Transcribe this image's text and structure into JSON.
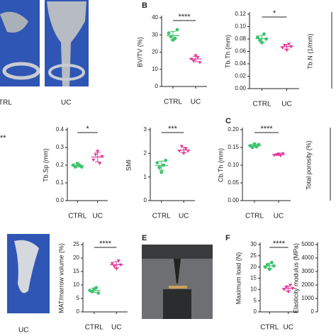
{
  "figure": {
    "panel_labels": [
      "B",
      "C",
      "E",
      "F"
    ],
    "image_labels": [
      "TRL",
      "UC",
      "UC"
    ],
    "annotations": [
      "**"
    ]
  },
  "chart_data": [
    {
      "type": "strip",
      "ylabel": "BV/TV (%)",
      "categories": [
        "CTRL",
        "UC"
      ],
      "series": [
        {
          "color": "#3cc36b",
          "values": [
            31,
            29,
            27,
            28,
            33
          ]
        },
        {
          "color": "#e2399b",
          "values": [
            16,
            15,
            18,
            17,
            14
          ]
        }
      ],
      "ylim": [
        0,
        40
      ],
      "yticks": [
        0,
        10,
        20,
        30,
        40
      ],
      "significance": "****"
    },
    {
      "type": "strip",
      "ylabel": "Tb.Th (mm)",
      "categories": [
        "CTRL",
        "UC"
      ],
      "series": [
        {
          "color": "#3cc36b",
          "values": [
            0.083,
            0.078,
            0.074,
            0.088,
            0.08
          ]
        },
        {
          "color": "#e2399b",
          "values": [
            0.066,
            0.07,
            0.062,
            0.072,
            0.068
          ]
        }
      ],
      "ylim": [
        0,
        0.12
      ],
      "yticks": [
        {
          "value": 0,
          "label": "0.00"
        },
        {
          "value": 0.02,
          "label": "0.02"
        },
        {
          "value": 0.04,
          "label": "0.04"
        },
        {
          "value": 0.06,
          "label": "0.06"
        },
        {
          "value": 0.08,
          "label": "0.08"
        },
        {
          "value": 0.1,
          "label": "0.10"
        },
        {
          "value": 0.12,
          "label": "0.12"
        }
      ],
      "significance": "*"
    },
    {
      "type": "axis",
      "ylabel": "Tb.N (1/mm)"
    },
    {
      "type": "strip",
      "ylabel": "Tb.Sp (mm)",
      "categories": [
        "CTRL",
        "UC"
      ],
      "series": [
        {
          "color": "#3cc36b",
          "values": [
            0.2,
            0.19,
            0.21,
            0.2,
            0.19
          ]
        },
        {
          "color": "#e2399b",
          "values": [
            0.23,
            0.26,
            0.28,
            0.21,
            0.25
          ]
        }
      ],
      "ylim": [
        0,
        0.4
      ],
      "yticks": [
        {
          "value": 0,
          "label": "0.0"
        },
        0.1,
        0.2,
        0.3,
        0.4
      ],
      "significance": "*"
    },
    {
      "type": "strip",
      "ylabel": "SMI",
      "categories": [
        "CTRL",
        "UC"
      ],
      "series": [
        {
          "color": "#3cc36b",
          "values": [
            1.6,
            1.4,
            1.2,
            1.5,
            1.7
          ]
        },
        {
          "color": "#e2399b",
          "values": [
            2.1,
            2.3,
            2.0,
            2.2,
            2.1
          ]
        }
      ],
      "ylim": [
        0,
        3
      ],
      "yticks": [
        0,
        1,
        2,
        3
      ],
      "significance": "***"
    },
    {
      "type": "strip",
      "ylabel": "Cb.Th (mm)",
      "categories": [
        "CTRL",
        "UC"
      ],
      "series": [
        {
          "color": "#3cc36b",
          "values": [
            0.155,
            0.15,
            0.16,
            0.152,
            0.158
          ]
        },
        {
          "color": "#e2399b",
          "values": [
            0.128,
            0.13,
            0.132,
            0.127,
            0.133
          ]
        }
      ],
      "ylim": [
        0,
        0.2
      ],
      "yticks": [
        {
          "value": 0,
          "label": "0.00"
        },
        {
          "value": 0.05,
          "label": "0.05"
        },
        {
          "value": 0.1,
          "label": "0.10"
        },
        {
          "value": 0.15,
          "label": "0.15"
        },
        {
          "value": 0.2,
          "label": "0.20"
        }
      ],
      "significance": "****"
    },
    {
      "type": "axis",
      "ylabel": "Total porosity (%)"
    },
    {
      "type": "strip",
      "ylabel": "MAT/marrow volume (%)",
      "categories": [
        "CTRL",
        "UC"
      ],
      "series": [
        {
          "color": "#3cc36b",
          "values": [
            8,
            7.5,
            8.5,
            9,
            7
          ]
        },
        {
          "color": "#e2399b",
          "values": [
            18,
            17,
            16,
            19,
            17.5
          ]
        }
      ],
      "ylim": [
        0,
        25
      ],
      "yticks": [
        0,
        5,
        10,
        15,
        20,
        25
      ],
      "significance": "****"
    },
    {
      "type": "strip",
      "ylabel": "Maximum load (N)",
      "categories": [
        "CTRL",
        "UC"
      ],
      "series": [
        {
          "color": "#3cc36b",
          "values": [
            20,
            21,
            19,
            22,
            20.5
          ]
        },
        {
          "color": "#e2399b",
          "values": [
            10,
            11,
            9,
            12,
            10.5
          ]
        }
      ],
      "ylim": [
        0,
        30
      ],
      "yticks": [
        0,
        5,
        10,
        15,
        20,
        25,
        30
      ],
      "significance": "****"
    },
    {
      "type": "axis",
      "ylabel": "Elasticity modulus (MPa)",
      "ylim": [
        0,
        5000
      ],
      "yticks": [
        0,
        1000,
        2000,
        3000,
        4000,
        5000
      ]
    }
  ]
}
